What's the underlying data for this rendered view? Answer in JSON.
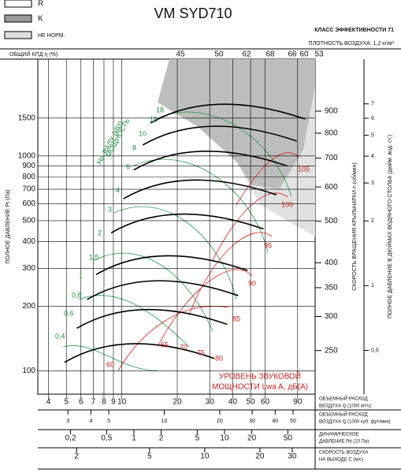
{
  "legend": [
    "R",
    "K",
    "НЕ НОРМ."
  ],
  "chart_data": {
    "type": "line",
    "title": "VM SYD710",
    "subtitle": [
      "КЛАСС ЭФФЕКТИВНОСТИ 71",
      "ПЛОТНОСТЬ ВОЗДУХА: 1,2 кг/м³"
    ],
    "ylabel": "ПОЛНОЕ ДАВЛЕНИЕ Pt (Па)",
    "ylog": true,
    "ylim": [
      78,
      2820
    ],
    "yticks": [
      100,
      200,
      300,
      400,
      500,
      600,
      700,
      800,
      900,
      1000,
      1500
    ],
    "efficiency_label": "ОБЩИЙ КПД η (%)",
    "efficiency_ticks": [
      45,
      50,
      62,
      68,
      66,
      60,
      53
    ],
    "speed_axis": {
      "label": "СКОРОСТЬ ВРАЩЕНИЯ КРЫЛЬЧАТКИ n (об/мин)",
      "lim": [
        198,
        1189
      ],
      "ticks": [
        250,
        300,
        350,
        400,
        500,
        600,
        700,
        800,
        900
      ]
    },
    "inch_axis": {
      "label": "ПОЛНОЕ ДАВЛЕНИЕ В ДЮЙМАХ ВОДЯНОГО СТОЛБА (дюйм. вод. ст.)",
      "lim": [
        0.313,
        11.3
      ],
      "ticks": [
        {
          "value": 0.5,
          "label": "0,5"
        },
        1,
        2,
        3,
        4,
        5,
        6,
        7
      ]
    },
    "flow_scales": [
      {
        "label": [
          "ОБЪЕМНЫЙ РАСХОД",
          "ВОЗДУХА Q (1000 м³/ч)"
        ],
        "lim": [
          3.5,
          112
        ],
        "ticks": [
          4,
          5,
          6,
          7,
          8,
          9,
          10,
          20,
          30,
          40,
          50,
          60,
          90
        ]
      },
      {
        "label": [
          "ОБЪЕМНЫЙ РАСХОД",
          "ВОЗДУХА Q (1000 куб. фут/мин)"
        ],
        "lim": [
          2.06,
          65.9
        ],
        "ticks": [
          3,
          4,
          5,
          10,
          20,
          30,
          40,
          50
        ]
      },
      {
        "label": [
          "ДИНАМИЧЕСКОЕ",
          "ДАВЛЕНИЕ Pd (10 Па)"
        ],
        "lim": [
          0.087,
          100
        ],
        "ticks": [
          {
            "value": 0.2,
            "label": "0,2"
          },
          {
            "value": 0.5,
            "label": "0,5"
          },
          1,
          2,
          5,
          10,
          20,
          50
        ]
      },
      {
        "label": [
          "СКОРОСТЬ ВОЗДУХА",
          "НА ВЫХОДЕ C (м/с)"
        ],
        "lim": [
          1.23,
          40
        ],
        "ticks": [
          2,
          5,
          10,
          20,
          30
        ]
      }
    ],
    "power_title": [
      "МОЩНОСТЬ",
      "НА ВАЛУ (кВт)"
    ],
    "power_labels": [
      "18",
      "15",
      "10",
      "8",
      "6",
      "4",
      "3",
      "2",
      "1,5",
      "1",
      "0,8",
      "0,6",
      "0,4"
    ],
    "sound_title": [
      "УРОВЕНЬ ЗВУКОВОЙ",
      "МОЩНОСТИ Lwa A, дБ(А)"
    ],
    "sound_labels": [
      60,
      65,
      70,
      75,
      80,
      85,
      90,
      95,
      100,
      105
    ]
  }
}
